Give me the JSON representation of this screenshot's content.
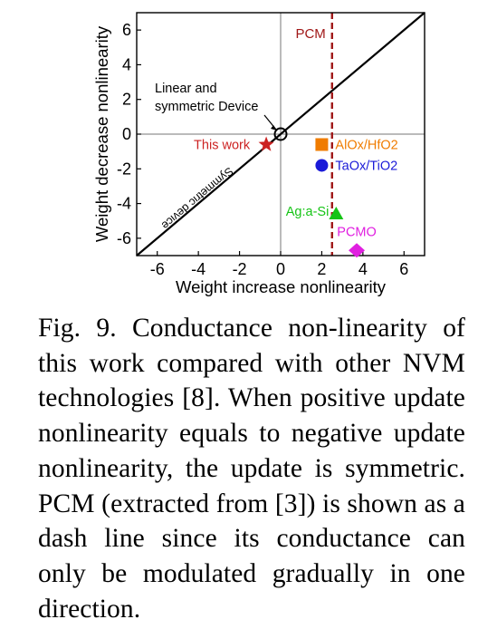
{
  "chart_data": {
    "type": "scatter",
    "xlabel": "Weight increase nonlinearity",
    "ylabel": "Weight decrease nonlinearity",
    "xlim": [
      -7,
      7
    ],
    "ylim": [
      -7,
      7
    ],
    "xticks": [
      -6,
      -4,
      -2,
      0,
      2,
      4,
      6
    ],
    "yticks": [
      -6,
      -4,
      -2,
      0,
      2,
      4,
      6
    ],
    "grid": false,
    "symmetric_line_label": "Symmetric device",
    "origin_label": [
      "Linear and",
      "symmetric Device"
    ],
    "pcm": {
      "label": "PCM",
      "x": 2.5,
      "color": "#a01818",
      "style": "dashed"
    },
    "series": [
      {
        "name": "This work",
        "x": -0.7,
        "y": -0.6,
        "marker": "star",
        "color": "#cc2222"
      },
      {
        "name": "AlOx/HfO2",
        "x": 2.0,
        "y": -0.6,
        "marker": "square",
        "color": "#f07c00"
      },
      {
        "name": "TaOx/TiO2",
        "x": 2.0,
        "y": -1.8,
        "marker": "circle",
        "color": "#1a1ad8"
      },
      {
        "name": "Ag:a-Si",
        "x": 2.7,
        "y": -4.6,
        "marker": "triangle",
        "color": "#16c416"
      },
      {
        "name": "PCMO",
        "x": 3.7,
        "y": -6.7,
        "marker": "diamond",
        "color": "#e020e0"
      }
    ]
  },
  "caption": "Fig. 9. Conductance non-linearity of this work compared with other NVM technologies [8]. When positive update nonlinearity equals to negative update nonlinearity, the update is symmetric. PCM (extracted from [3]) is shown as a dash line since its conductance can only be modulated gradually in one direction."
}
